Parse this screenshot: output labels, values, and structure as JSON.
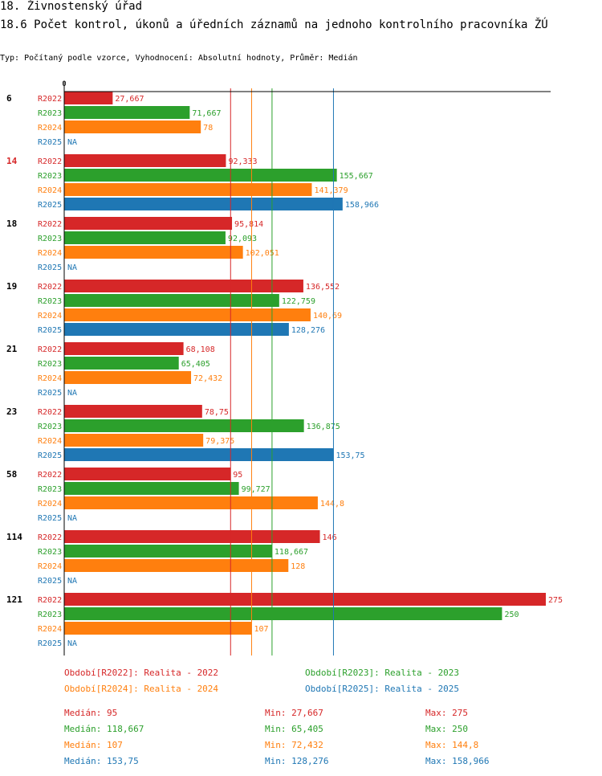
{
  "header": {
    "title": "18. Živnostenský úřad",
    "subtitle": "18.6 Počet kontrol, úkonů a úředních záznamů na jednoho kontrolního pracovníka ŽÚ",
    "description": "Typ: Počítaný podle vzorce, Vyhodnocení: Absolutní hodnoty, Průměr: Medián"
  },
  "colors": {
    "R2022": "#d62728",
    "R2023": "#2ca02c",
    "R2024": "#ff7f0e",
    "R2025": "#1f77b4",
    "highlight": "#d62728",
    "axis": "#000000"
  },
  "chart_data": {
    "type": "bar",
    "orientation": "horizontal",
    "axis_zero_label": "0",
    "xlim": [
      0,
      275
    ],
    "na_label": "NA",
    "series_names": [
      "R2022",
      "R2023",
      "R2024",
      "R2025"
    ],
    "groups": [
      {
        "label": "6",
        "highlight": false,
        "values": [
          27.667,
          71.667,
          78,
          null
        ],
        "labels": [
          "27,667",
          "71,667",
          "78",
          "NA"
        ]
      },
      {
        "label": "14",
        "highlight": true,
        "values": [
          92.333,
          155.667,
          141.379,
          158.966
        ],
        "labels": [
          "92,333",
          "155,667",
          "141,379",
          "158,966"
        ]
      },
      {
        "label": "18",
        "highlight": false,
        "values": [
          95.814,
          92.093,
          102.051,
          null
        ],
        "labels": [
          "95,814",
          "92,093",
          "102,051",
          "NA"
        ]
      },
      {
        "label": "19",
        "highlight": false,
        "values": [
          136.552,
          122.759,
          140.69,
          128.276
        ],
        "labels": [
          "136,552",
          "122,759",
          "140,69",
          "128,276"
        ]
      },
      {
        "label": "21",
        "highlight": false,
        "values": [
          68.108,
          65.405,
          72.432,
          null
        ],
        "labels": [
          "68,108",
          "65,405",
          "72,432",
          "NA"
        ]
      },
      {
        "label": "23",
        "highlight": false,
        "values": [
          78.75,
          136.875,
          79.375,
          153.75
        ],
        "labels": [
          "78,75",
          "136,875",
          "79,375",
          "153,75"
        ]
      },
      {
        "label": "58",
        "highlight": false,
        "values": [
          95,
          99.727,
          144.8,
          null
        ],
        "labels": [
          "95",
          "99,727",
          "144,8",
          "NA"
        ]
      },
      {
        "label": "114",
        "highlight": false,
        "values": [
          146,
          118.667,
          128,
          null
        ],
        "labels": [
          "146",
          "118,667",
          "128",
          "NA"
        ]
      },
      {
        "label": "121",
        "highlight": false,
        "values": [
          275,
          250,
          107,
          null
        ],
        "labels": [
          "275",
          "250",
          "107",
          "NA"
        ]
      }
    ],
    "median_lines": [
      {
        "series": "R2022",
        "value": 95
      },
      {
        "series": "R2023",
        "value": 118.667
      },
      {
        "series": "R2024",
        "value": 107
      },
      {
        "series": "R2025",
        "value": 153.75
      }
    ]
  },
  "legend": [
    {
      "series": "R2022",
      "text": "Období[R2022]: Realita - 2022"
    },
    {
      "series": "R2023",
      "text": "Období[R2023]: Realita - 2023"
    },
    {
      "series": "R2024",
      "text": "Období[R2024]: Realita - 2024"
    },
    {
      "series": "R2025",
      "text": "Období[R2025]: Realita - 2025"
    }
  ],
  "stats": [
    {
      "series": "R2022",
      "median": "Medián: 95",
      "min": "Min: 27,667",
      "max": "Max: 275"
    },
    {
      "series": "R2023",
      "median": "Medián: 118,667",
      "min": "Min: 65,405",
      "max": "Max: 250"
    },
    {
      "series": "R2024",
      "median": "Medián: 107",
      "min": "Min: 72,432",
      "max": "Max: 144,8"
    },
    {
      "series": "R2025",
      "median": "Medián: 153,75",
      "min": "Min: 128,276",
      "max": "Max: 158,966"
    }
  ]
}
